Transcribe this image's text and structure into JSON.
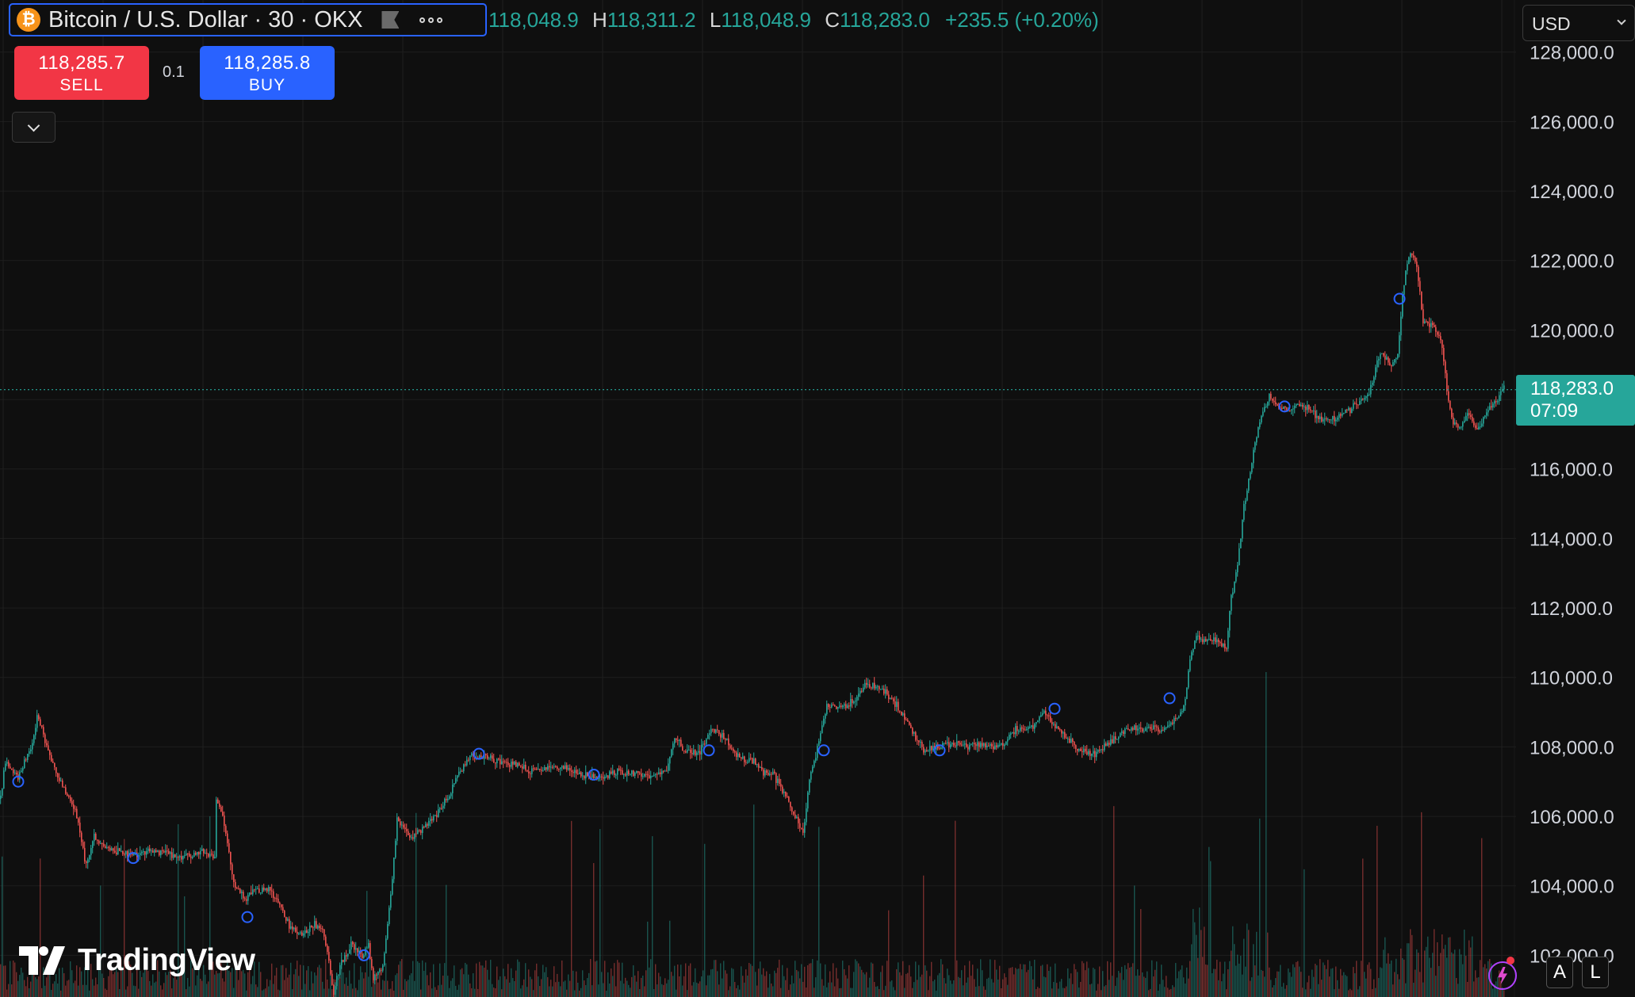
{
  "header": {
    "symbol_title": "Bitcoin / U.S. Dollar · 30 · OKX",
    "coin_glyph": "₿",
    "ohlc": {
      "open_label": "",
      "open": "118,048.9",
      "high_label": "H",
      "high": "118,311.2",
      "low_label": "L",
      "low": "118,048.9",
      "close_label": "C",
      "close": "118,283.0",
      "change": "+235.5 (+0.20%)"
    }
  },
  "trade": {
    "sell_price": "118,285.7",
    "sell_label": "SELL",
    "buy_price": "118,285.8",
    "buy_label": "BUY",
    "quantity": "0.1"
  },
  "currency": "USD",
  "last_price_tag": {
    "price": "118,283.0",
    "countdown": "07:09"
  },
  "branding": {
    "logo_text": "TradingView"
  },
  "scale_buttons": {
    "auto": "A",
    "log": "L"
  },
  "colors": {
    "up": "#26a69a",
    "down": "#ef5350",
    "background": "#0f0f0f",
    "grid": "#1f1f1f",
    "marker": "#2962ff",
    "sell": "#f23645",
    "buy": "#2962ff"
  },
  "chart_data": {
    "type": "candlestick",
    "interval": "30",
    "y_axis": {
      "ticks": [
        "102,000.0",
        "104,000.0",
        "106,000.0",
        "108,000.0",
        "110,000.0",
        "112,000.0",
        "114,000.0",
        "116,000.0",
        "118,000.0",
        "120,000.0",
        "122,000.0",
        "124,000.0",
        "126,000.0",
        "128,000.0"
      ],
      "tick_values": [
        102000,
        104000,
        106000,
        108000,
        110000,
        112000,
        114000,
        116000,
        118000,
        120000,
        122000,
        124000,
        126000,
        128000
      ],
      "range": [
        100800,
        129500
      ]
    },
    "grid": true,
    "price_path": [
      [
        0,
        106500
      ],
      [
        6,
        107600
      ],
      [
        22,
        107100
      ],
      [
        38,
        108000
      ],
      [
        47,
        108900
      ],
      [
        62,
        107700
      ],
      [
        80,
        106800
      ],
      [
        95,
        106100
      ],
      [
        108,
        104600
      ],
      [
        118,
        105400
      ],
      [
        132,
        105100
      ],
      [
        148,
        105000
      ],
      [
        165,
        104900
      ],
      [
        182,
        105000
      ],
      [
        200,
        105000
      ],
      [
        212,
        104900
      ],
      [
        230,
        104800
      ],
      [
        255,
        105000
      ],
      [
        270,
        104800
      ],
      [
        272,
        106500
      ],
      [
        282,
        105800
      ],
      [
        295,
        104000
      ],
      [
        308,
        103600
      ],
      [
        322,
        103900
      ],
      [
        338,
        103900
      ],
      [
        352,
        103500
      ],
      [
        365,
        102800
      ],
      [
        380,
        102600
      ],
      [
        395,
        102900
      ],
      [
        405,
        102800
      ],
      [
        412,
        102100
      ],
      [
        420,
        100900
      ],
      [
        428,
        101700
      ],
      [
        442,
        102300
      ],
      [
        456,
        102000
      ],
      [
        464,
        102300
      ],
      [
        470,
        101300
      ],
      [
        482,
        101700
      ],
      [
        492,
        103700
      ],
      [
        500,
        105900
      ],
      [
        515,
        105400
      ],
      [
        532,
        105600
      ],
      [
        548,
        106000
      ],
      [
        565,
        106600
      ],
      [
        580,
        107300
      ],
      [
        595,
        107800
      ],
      [
        610,
        107700
      ],
      [
        630,
        107600
      ],
      [
        650,
        107500
      ],
      [
        668,
        107300
      ],
      [
        690,
        107400
      ],
      [
        712,
        107400
      ],
      [
        728,
        107200
      ],
      [
        745,
        107100
      ],
      [
        762,
        107100
      ],
      [
        780,
        107300
      ],
      [
        800,
        107200
      ],
      [
        820,
        107200
      ],
      [
        840,
        107300
      ],
      [
        850,
        108300
      ],
      [
        862,
        107900
      ],
      [
        880,
        107800
      ],
      [
        898,
        108500
      ],
      [
        912,
        108300
      ],
      [
        928,
        107700
      ],
      [
        948,
        107600
      ],
      [
        962,
        107300
      ],
      [
        975,
        107200
      ],
      [
        988,
        106700
      ],
      [
        1002,
        106000
      ],
      [
        1012,
        105500
      ],
      [
        1020,
        107000
      ],
      [
        1028,
        107800
      ],
      [
        1042,
        109200
      ],
      [
        1060,
        109100
      ],
      [
        1078,
        109400
      ],
      [
        1092,
        109800
      ],
      [
        1110,
        109700
      ],
      [
        1130,
        109200
      ],
      [
        1146,
        108600
      ],
      [
        1164,
        107900
      ],
      [
        1180,
        108000
      ],
      [
        1200,
        108100
      ],
      [
        1220,
        108000
      ],
      [
        1240,
        108100
      ],
      [
        1260,
        108000
      ],
      [
        1280,
        108500
      ],
      [
        1300,
        108600
      ],
      [
        1316,
        109000
      ],
      [
        1330,
        108600
      ],
      [
        1345,
        108200
      ],
      [
        1360,
        107900
      ],
      [
        1378,
        107800
      ],
      [
        1392,
        108000
      ],
      [
        1408,
        108300
      ],
      [
        1420,
        108500
      ],
      [
        1438,
        108500
      ],
      [
        1452,
        108500
      ],
      [
        1465,
        108500
      ],
      [
        1478,
        108700
      ],
      [
        1490,
        109000
      ],
      [
        1494,
        109400
      ],
      [
        1500,
        110500
      ],
      [
        1508,
        111200
      ],
      [
        1520,
        111100
      ],
      [
        1535,
        111000
      ],
      [
        1546,
        110800
      ],
      [
        1552,
        112300
      ],
      [
        1560,
        113200
      ],
      [
        1568,
        114900
      ],
      [
        1574,
        115700
      ],
      [
        1582,
        116700
      ],
      [
        1590,
        117500
      ],
      [
        1600,
        118100
      ],
      [
        1612,
        117800
      ],
      [
        1624,
        117700
      ],
      [
        1640,
        117900
      ],
      [
        1652,
        117700
      ],
      [
        1666,
        117400
      ],
      [
        1682,
        117400
      ],
      [
        1700,
        117700
      ],
      [
        1716,
        118000
      ],
      [
        1728,
        118300
      ],
      [
        1740,
        119400
      ],
      [
        1752,
        119000
      ],
      [
        1762,
        119300
      ],
      [
        1768,
        121100
      ],
      [
        1776,
        122200
      ],
      [
        1786,
        121900
      ],
      [
        1794,
        120200
      ],
      [
        1806,
        120100
      ],
      [
        1816,
        119800
      ],
      [
        1824,
        118300
      ],
      [
        1832,
        117300
      ],
      [
        1842,
        117200
      ],
      [
        1852,
        117600
      ],
      [
        1860,
        117200
      ],
      [
        1866,
        117300
      ],
      [
        1878,
        117800
      ],
      [
        1888,
        118000
      ],
      [
        1896,
        118283
      ]
    ],
    "markers_at": [
      [
        23,
        107000
      ],
      [
        168,
        104800
      ],
      [
        312,
        103100
      ],
      [
        459,
        102000
      ],
      [
        604,
        107800
      ],
      [
        749,
        107200
      ],
      [
        894,
        107900
      ],
      [
        1039,
        107900
      ],
      [
        1185,
        107900
      ],
      [
        1330,
        109100
      ],
      [
        1475,
        109400
      ],
      [
        1620,
        117800
      ],
      [
        1765,
        120900
      ]
    ]
  }
}
